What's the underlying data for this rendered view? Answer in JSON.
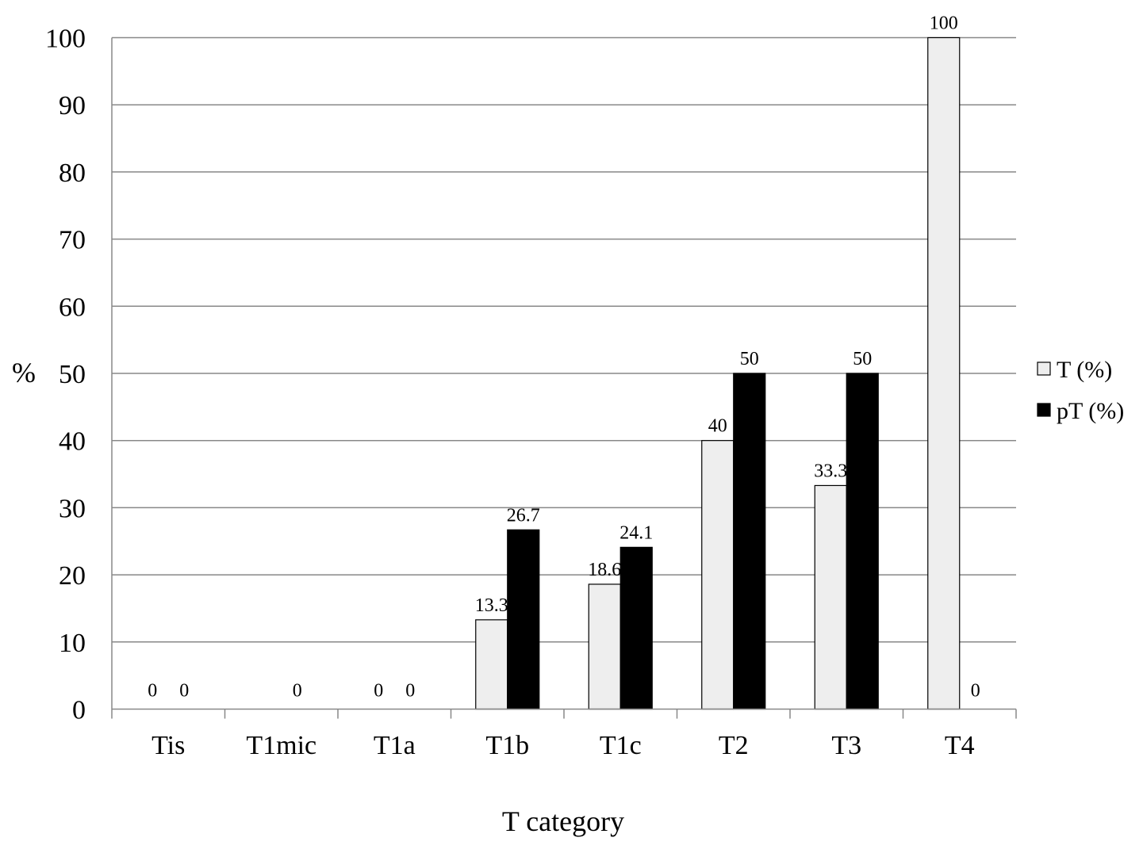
{
  "chart_data": {
    "type": "bar",
    "title": "",
    "xlabel": "T category",
    "ylabel": "%",
    "ylim": [
      0,
      100
    ],
    "yticks": [
      0,
      10,
      20,
      30,
      40,
      50,
      60,
      70,
      80,
      90,
      100
    ],
    "grid": true,
    "legend": "right",
    "categories": [
      "Tis",
      "T1mic",
      "T1a",
      "T1b",
      "T1c",
      "T2",
      "T3",
      "T4"
    ],
    "series": [
      {
        "name": "T (%)",
        "color": "#eeeeee",
        "values": [
          0,
          null,
          0,
          13.3,
          18.6,
          40,
          33.3,
          100
        ],
        "labels": [
          "0",
          "",
          "0",
          "13.3",
          "18.6",
          "40",
          "33.3",
          "100"
        ]
      },
      {
        "name": "pT (%)",
        "color": "#000000",
        "values": [
          0,
          0,
          0,
          26.7,
          24.1,
          50,
          50,
          0
        ],
        "labels": [
          "0",
          "0",
          "0",
          "26.7",
          "24.1",
          "50",
          "50",
          "0"
        ]
      }
    ]
  }
}
